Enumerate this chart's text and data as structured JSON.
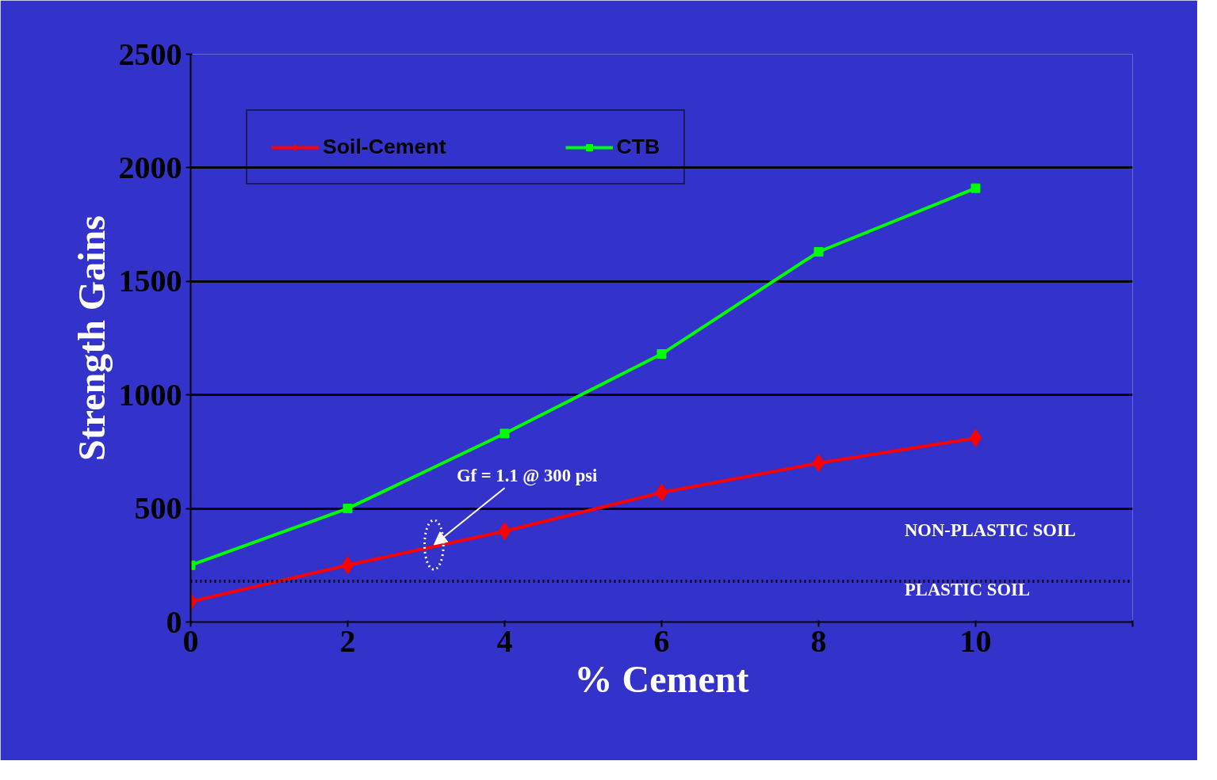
{
  "chart_data": {
    "type": "line",
    "xlabel": "% Cement",
    "ylabel": "Strength Gains",
    "x": [
      0,
      2,
      4,
      6,
      8,
      10
    ],
    "series": [
      {
        "name": "Soil-Cement",
        "color": "#ff0000",
        "marker": "diamond",
        "values": [
          90,
          250,
          400,
          570,
          700,
          810
        ]
      },
      {
        "name": "CTB",
        "color": "#00ff00",
        "marker": "square",
        "values": [
          250,
          500,
          830,
          1180,
          1630,
          1910
        ]
      }
    ],
    "xlim": [
      0,
      12
    ],
    "xticks": [
      0,
      2,
      4,
      6,
      8,
      10,
      {
        "value": 12,
        "label": null
      }
    ],
    "ylim": [
      0,
      2500
    ],
    "yticks": [
      0,
      500,
      1000,
      1500,
      2000,
      2500
    ],
    "grid": "y",
    "legend": "top left",
    "line_style": "solid",
    "ref_lines": [
      {
        "axis": "y",
        "value": 180,
        "label": null,
        "color": "#000000",
        "line_style": "dotted"
      }
    ],
    "annotations": [
      {
        "text": "Gf = 1.1 @ 300 psi",
        "x": 3.1,
        "y": 340
      },
      "NON-PLASTIC SOIL",
      "PLASTIC SOIL"
    ]
  }
}
